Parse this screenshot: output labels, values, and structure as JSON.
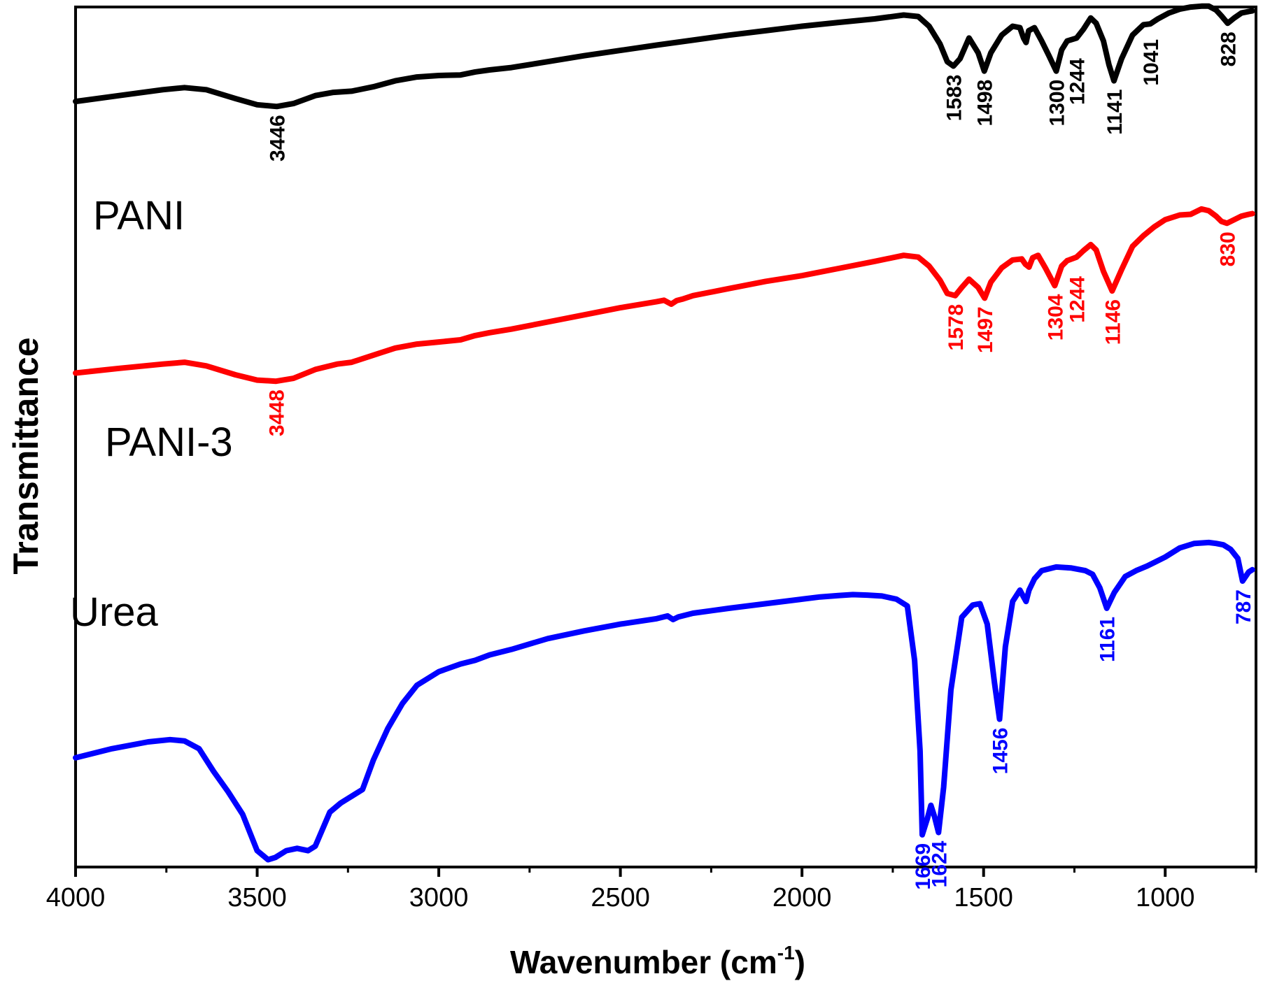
{
  "chart_data": {
    "type": "line",
    "title": "",
    "xlabel": "Wavenumber (cm",
    "xlabel_sup": "-1",
    "xlabel_close": ")",
    "ylabel": "Transmittance",
    "xlim": [
      4000,
      750
    ],
    "ylim": [
      0,
      100
    ],
    "x_ticks": [
      {
        "value": 4000,
        "label": "4000"
      },
      {
        "value": 3500,
        "label": "3500"
      },
      {
        "value": 3000,
        "label": "3000"
      },
      {
        "value": 2500,
        "label": "2500"
      },
      {
        "value": 2000,
        "label": "2000"
      },
      {
        "value": 1500,
        "label": "1500"
      },
      {
        "value": 1000,
        "label": "1000"
      }
    ],
    "x_minor_ticks": [
      3750,
      3250,
      2750,
      2250,
      1750,
      1250,
      750
    ],
    "series": [
      {
        "name": "PANI",
        "label": "PANI",
        "color": "#000000",
        "x": [
          4000,
          3880,
          3760,
          3700,
          3640,
          3560,
          3500,
          3446,
          3400,
          3340,
          3290,
          3240,
          3180,
          3120,
          3060,
          3000,
          2940,
          2900,
          2860,
          2800,
          2700,
          2600,
          2500,
          2400,
          2300,
          2200,
          2100,
          2000,
          1900,
          1800,
          1720,
          1680,
          1650,
          1620,
          1600,
          1583,
          1565,
          1540,
          1515,
          1498,
          1480,
          1450,
          1420,
          1400,
          1390,
          1383,
          1376,
          1360,
          1340,
          1320,
          1300,
          1285,
          1270,
          1244,
          1225,
          1205,
          1190,
          1170,
          1155,
          1141,
          1120,
          1090,
          1060,
          1041,
          1020,
          990,
          960,
          930,
          900,
          880,
          860,
          845,
          828,
          810,
          790,
          770,
          760
        ],
        "y": [
          67.5,
          69.5,
          71.5,
          72.2,
          71.5,
          68.5,
          66.4,
          65.8,
          66.8,
          69.5,
          70.6,
          71.0,
          72.5,
          74.5,
          75.8,
          76.3,
          76.5,
          77.5,
          78.2,
          79.0,
          81.0,
          83.0,
          84.8,
          86.6,
          88.3,
          90.0,
          91.5,
          93.0,
          94.3,
          95.5,
          96.8,
          96.3,
          93.0,
          87.0,
          81.0,
          79.5,
          82.0,
          89.0,
          84.0,
          77.8,
          84.0,
          90.0,
          93.0,
          92.5,
          89.0,
          87.5,
          91.5,
          92.5,
          88.0,
          83.0,
          77.8,
          85.0,
          88.0,
          89.0,
          92.0,
          95.8,
          94.0,
          88.0,
          80.0,
          74.5,
          82.0,
          90.0,
          93.5,
          93.8,
          95.5,
          97.5,
          98.8,
          99.5,
          99.8,
          99.8,
          98.5,
          96.5,
          94.0,
          95.8,
          97.5,
          98.0,
          98.2
        ]
      },
      {
        "name": "PANI-3",
        "label": "PANI-3",
        "color": "#ff0000",
        "x": [
          4000,
          3880,
          3760,
          3700,
          3640,
          3560,
          3500,
          3448,
          3400,
          3340,
          3280,
          3240,
          3180,
          3120,
          3060,
          3000,
          2940,
          2900,
          2860,
          2800,
          2700,
          2600,
          2500,
          2400,
          2380,
          2360,
          2345,
          2330,
          2300,
          2200,
          2100,
          2000,
          1900,
          1800,
          1720,
          1680,
          1650,
          1620,
          1600,
          1578,
          1560,
          1540,
          1515,
          1497,
          1480,
          1450,
          1420,
          1395,
          1385,
          1375,
          1365,
          1350,
          1330,
          1304,
          1285,
          1270,
          1244,
          1225,
          1205,
          1190,
          1170,
          1146,
          1120,
          1090,
          1060,
          1030,
          1000,
          960,
          930,
          900,
          880,
          860,
          845,
          830,
          810,
          790,
          770,
          760
        ],
        "y": [
          40.5,
          41.8,
          43.0,
          43.5,
          42.5,
          40.0,
          38.5,
          38.2,
          39.0,
          41.5,
          43.0,
          43.5,
          45.5,
          47.5,
          48.6,
          49.2,
          49.8,
          51.0,
          51.8,
          52.8,
          54.8,
          56.8,
          58.8,
          60.5,
          60.9,
          59.8,
          60.8,
          61.2,
          62.2,
          64.2,
          66.2,
          67.8,
          69.8,
          71.8,
          73.5,
          73.0,
          70.5,
          66.5,
          62.8,
          62.2,
          64.5,
          66.8,
          64.5,
          61.5,
          66.0,
          70.0,
          72.2,
          72.5,
          71.0,
          70.2,
          72.8,
          73.5,
          70.0,
          65.0,
          70.5,
          72.0,
          73.0,
          74.8,
          76.5,
          75.0,
          69.0,
          63.5,
          69.5,
          76.0,
          79.0,
          81.5,
          83.5,
          84.8,
          85.0,
          86.5,
          86.0,
          84.5,
          83.0,
          82.5,
          83.5,
          84.5,
          85.0,
          85.2
        ]
      },
      {
        "name": "Urea",
        "label": "Urea",
        "color": "#0000ff",
        "x": [
          4000,
          3900,
          3800,
          3740,
          3700,
          3660,
          3620,
          3580,
          3540,
          3500,
          3470,
          3450,
          3420,
          3390,
          3360,
          3340,
          3300,
          3270,
          3240,
          3210,
          3180,
          3140,
          3100,
          3060,
          3000,
          2940,
          2900,
          2860,
          2800,
          2700,
          2600,
          2500,
          2400,
          2370,
          2355,
          2340,
          2300,
          2200,
          2100,
          2000,
          1950,
          1900,
          1860,
          1820,
          1780,
          1740,
          1710,
          1690,
          1675,
          1669,
          1655,
          1645,
          1635,
          1624,
          1610,
          1590,
          1560,
          1530,
          1510,
          1490,
          1470,
          1456,
          1440,
          1420,
          1400,
          1390,
          1383,
          1375,
          1360,
          1340,
          1300,
          1260,
          1220,
          1200,
          1180,
          1161,
          1140,
          1110,
          1080,
          1050,
          1000,
          960,
          920,
          880,
          860,
          840,
          820,
          800,
          787,
          770,
          760
        ],
        "y": [
          23.5,
          25.5,
          27.0,
          27.5,
          27.2,
          25.5,
          20.5,
          16.0,
          11.0,
          3.0,
          1.0,
          1.5,
          3.0,
          3.5,
          3.0,
          4.0,
          11.5,
          13.5,
          15.0,
          16.5,
          23.0,
          30.0,
          35.5,
          39.5,
          42.5,
          44.2,
          45.0,
          46.2,
          47.4,
          49.8,
          51.5,
          53.0,
          54.2,
          54.8,
          54.0,
          54.6,
          55.4,
          56.5,
          57.5,
          58.5,
          59.0,
          59.3,
          59.5,
          59.4,
          59.2,
          58.5,
          57.0,
          45.0,
          25.0,
          6.5,
          10.0,
          13.0,
          10.5,
          7.0,
          17.0,
          38.5,
          54.5,
          57.2,
          57.5,
          53.0,
          40.0,
          32.0,
          48.0,
          58.0,
          60.5,
          59.0,
          58.0,
          60.5,
          63.0,
          64.8,
          65.6,
          65.4,
          64.8,
          64.0,
          61.0,
          56.5,
          60.0,
          63.5,
          64.8,
          65.8,
          67.8,
          69.8,
          70.8,
          71.0,
          70.8,
          70.5,
          69.5,
          67.5,
          62.5,
          64.5,
          65.0
        ]
      }
    ],
    "annotations": [
      {
        "text": "3446",
        "x": 3446,
        "y": 65.8,
        "color": "#000000",
        "series": "PANI"
      },
      {
        "text": "1583",
        "x": 1583,
        "y": 79.5,
        "color": "#000000",
        "series": "PANI"
      },
      {
        "text": "1498",
        "x": 1498,
        "y": 77.8,
        "color": "#000000",
        "series": "PANI"
      },
      {
        "text": "1300",
        "x": 1300,
        "y": 77.8,
        "color": "#000000",
        "series": "PANI"
      },
      {
        "text": "1244",
        "x": 1244,
        "y": 85.0,
        "color": "#000000",
        "series": "PANI"
      },
      {
        "text": "1141",
        "x": 1141,
        "y": 74.5,
        "color": "#000000",
        "series": "PANI"
      },
      {
        "text": "1041",
        "x": 1041,
        "y": 91.5,
        "color": "#000000",
        "series": "PANI"
      },
      {
        "text": "828",
        "x": 828,
        "y": 94.0,
        "color": "#000000",
        "series": "PANI"
      },
      {
        "text": "3448",
        "x": 3448,
        "y": 38.2,
        "color": "#ff0000",
        "series": "PANI-3"
      },
      {
        "text": "1578",
        "x": 1578,
        "y": 62.2,
        "color": "#ff0000",
        "series": "PANI-3"
      },
      {
        "text": "1497",
        "x": 1497,
        "y": 61.5,
        "color": "#ff0000",
        "series": "PANI-3"
      },
      {
        "text": "1304",
        "x": 1304,
        "y": 65.0,
        "color": "#ff0000",
        "series": "PANI-3"
      },
      {
        "text": "1244",
        "x": 1244,
        "y": 70.0,
        "color": "#ff0000",
        "series": "PANI-3"
      },
      {
        "text": "1146",
        "x": 1146,
        "y": 63.5,
        "color": "#ff0000",
        "series": "PANI-3"
      },
      {
        "text": "830",
        "x": 830,
        "y": 82.5,
        "color": "#ff0000",
        "series": "PANI-3"
      },
      {
        "text": "1669",
        "x": 1669,
        "y": 6.5,
        "color": "#0000ff",
        "series": "Urea"
      },
      {
        "text": "1624",
        "x": 1624,
        "y": 7.0,
        "color": "#0000ff",
        "series": "Urea"
      },
      {
        "text": "1456",
        "x": 1456,
        "y": 32.0,
        "color": "#0000ff",
        "series": "Urea"
      },
      {
        "text": "1161",
        "x": 1161,
        "y": 56.5,
        "color": "#0000ff",
        "series": "Urea"
      },
      {
        "text": "787",
        "x": 787,
        "y": 62.5,
        "color": "#0000ff",
        "series": "Urea"
      }
    ]
  }
}
